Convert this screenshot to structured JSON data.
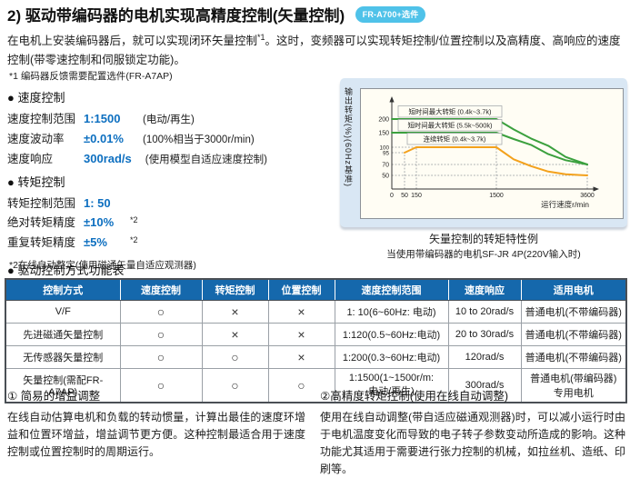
{
  "colors": {
    "accent_blue": "#0d6fc0",
    "table_header_bg": "#1568ac",
    "badge_bg": "#4fc2e9",
    "panel_bg": "#d9e7f4",
    "green_line": "#3ba03e",
    "orange_line": "#f3a11c"
  },
  "header": {
    "title": "2) 驱动带编码器的电机实现高精度控制(矢量控制)",
    "badge": "FR-A700+选件"
  },
  "intro": {
    "pre": "在电机上安装编码器后，就可以实现闭环矢量控制",
    "sup": "*1",
    "post": "。这时，变频器可以实现转矩控制/位置控制以及高精度、高响应的速度控制(带零速控制和伺服锁定功能)。"
  },
  "footnote_1": "*1 编码器反馈需要配置选件(FR-A7AP)",
  "speed_section": {
    "heading": "● 速度控制",
    "rows": [
      {
        "label": "速度控制范围",
        "value": "1:1500",
        "sup": "",
        "note": "(电动/再生)"
      },
      {
        "label": "速度波动率",
        "value": "±0.01%",
        "sup": "",
        "note": "(100%相当于3000r/min)"
      },
      {
        "label": "速度响应",
        "value": "300rad/s",
        "sup": "",
        "note": "(使用模型自适应速度控制)"
      }
    ]
  },
  "torque_section": {
    "heading": "● 转矩控制",
    "rows": [
      {
        "label": "转矩控制范围",
        "value": "1: 50",
        "sup": "",
        "note": ""
      },
      {
        "label": "绝对转矩精度",
        "value": "±10%",
        "sup": "*2",
        "note": ""
      },
      {
        "label": "重复转矩精度",
        "value": "±5%",
        "sup": "*2",
        "note": ""
      }
    ]
  },
  "footnote_2": "*2在线自动整定(使用磁通矢量自适应观测器)",
  "chart_data": {
    "type": "line",
    "title": "矢量控制的转矩特性例",
    "xlabel": "运行速度r/min",
    "ylabel": "输出转矩(%)(60Hz基准)",
    "x_ticks": [
      0,
      50,
      150,
      1500,
      3600
    ],
    "y_ticks": [
      200,
      150,
      100,
      95,
      70,
      50
    ],
    "xlim": [
      0,
      3600
    ],
    "ylim": [
      0,
      220
    ],
    "grid": "dotted-guides",
    "legend_position": "inside-top-left",
    "series": [
      {
        "name": "短时间最大转矩 (0.4k~3.7k)",
        "color": "#3ba03e",
        "points": [
          [
            0,
            200
          ],
          [
            1500,
            200
          ],
          [
            1900,
            162
          ],
          [
            2300,
            130
          ],
          [
            2700,
            105
          ],
          [
            3100,
            86
          ],
          [
            3600,
            70
          ]
        ]
      },
      {
        "name": "短时间最大转矩 (5.5k~500k)",
        "color": "#3ba03e",
        "points": [
          [
            0,
            150
          ],
          [
            1500,
            150
          ],
          [
            1900,
            128
          ],
          [
            2300,
            108
          ],
          [
            2700,
            92
          ],
          [
            3100,
            79
          ],
          [
            3600,
            70
          ]
        ]
      },
      {
        "name": "连续转矩 (0.4k~3.7k)",
        "color": "#f3a11c",
        "points": [
          [
            50,
            95
          ],
          [
            150,
            100
          ],
          [
            1500,
            100
          ],
          [
            1900,
            81
          ],
          [
            2300,
            67
          ],
          [
            2700,
            57
          ],
          [
            3100,
            52
          ],
          [
            3600,
            50
          ]
        ]
      }
    ],
    "guides": {
      "h_full": [
        70,
        50
      ],
      "h_short": [
        [
          100,
          150
        ],
        [
          95,
          50
        ]
      ],
      "v": [
        [
          50,
          95
        ],
        [
          150,
          100
        ],
        [
          1500,
          200
        ],
        [
          3600,
          70
        ]
      ]
    }
  },
  "chart_caption": {
    "title": "矢量控制的转矩特性例",
    "subtitle": "当使用带编码器的电机SF-JR 4P(220V输入时)"
  },
  "table": {
    "heading": "● 驱动控制方式功能表",
    "columns": [
      "控制方式",
      "速度控制",
      "转矩控制",
      "位置控制",
      "速度控制范围",
      "速度响应",
      "适用电机"
    ],
    "rows": [
      [
        "V/F",
        "○",
        "×",
        "×",
        "1: 10(6~60Hz: 电动)",
        "10 to 20rad/s",
        "普通电机(不带编码器)"
      ],
      [
        "先进磁通矢量控制",
        "○",
        "×",
        "×",
        "1:120(0.5~60Hz:电动)",
        "20 to 30rad/s",
        "普通电机(不带编码器)"
      ],
      [
        "无传感器矢量控制",
        "○",
        "○",
        "×",
        "1:200(0.3~60Hz:电动)",
        "120rad/s",
        "普通电机(不带编码器)"
      ],
      [
        "矢量控制(需配FR-A7AP)",
        "○",
        "○",
        "○",
        "1:1500(1~1500r/m:\n电动/再生)",
        "300rad/s",
        "普通电机(带编码器)\n专用电机"
      ]
    ]
  },
  "notes": [
    {
      "heading": "① 简易的增益调整",
      "body": "在线自动估算电机和负载的转动惯量，计算出最佳的速度环增益和位置环增益，增益调节更方便。这种控制最适合用于速度控制或位置控制时的周期运行。"
    },
    {
      "heading": "②高精度转矩控制(使用在线自动调整)",
      "body": "使用在线自动调整(带自适应磁通观测器)时，可以减小运行时由于电机温度变化而导致的电子转子参数变动所造成的影响。这种功能尤其适用于需要进行张力控制的机械，如拉丝机、造纸、印刷等。"
    }
  ]
}
